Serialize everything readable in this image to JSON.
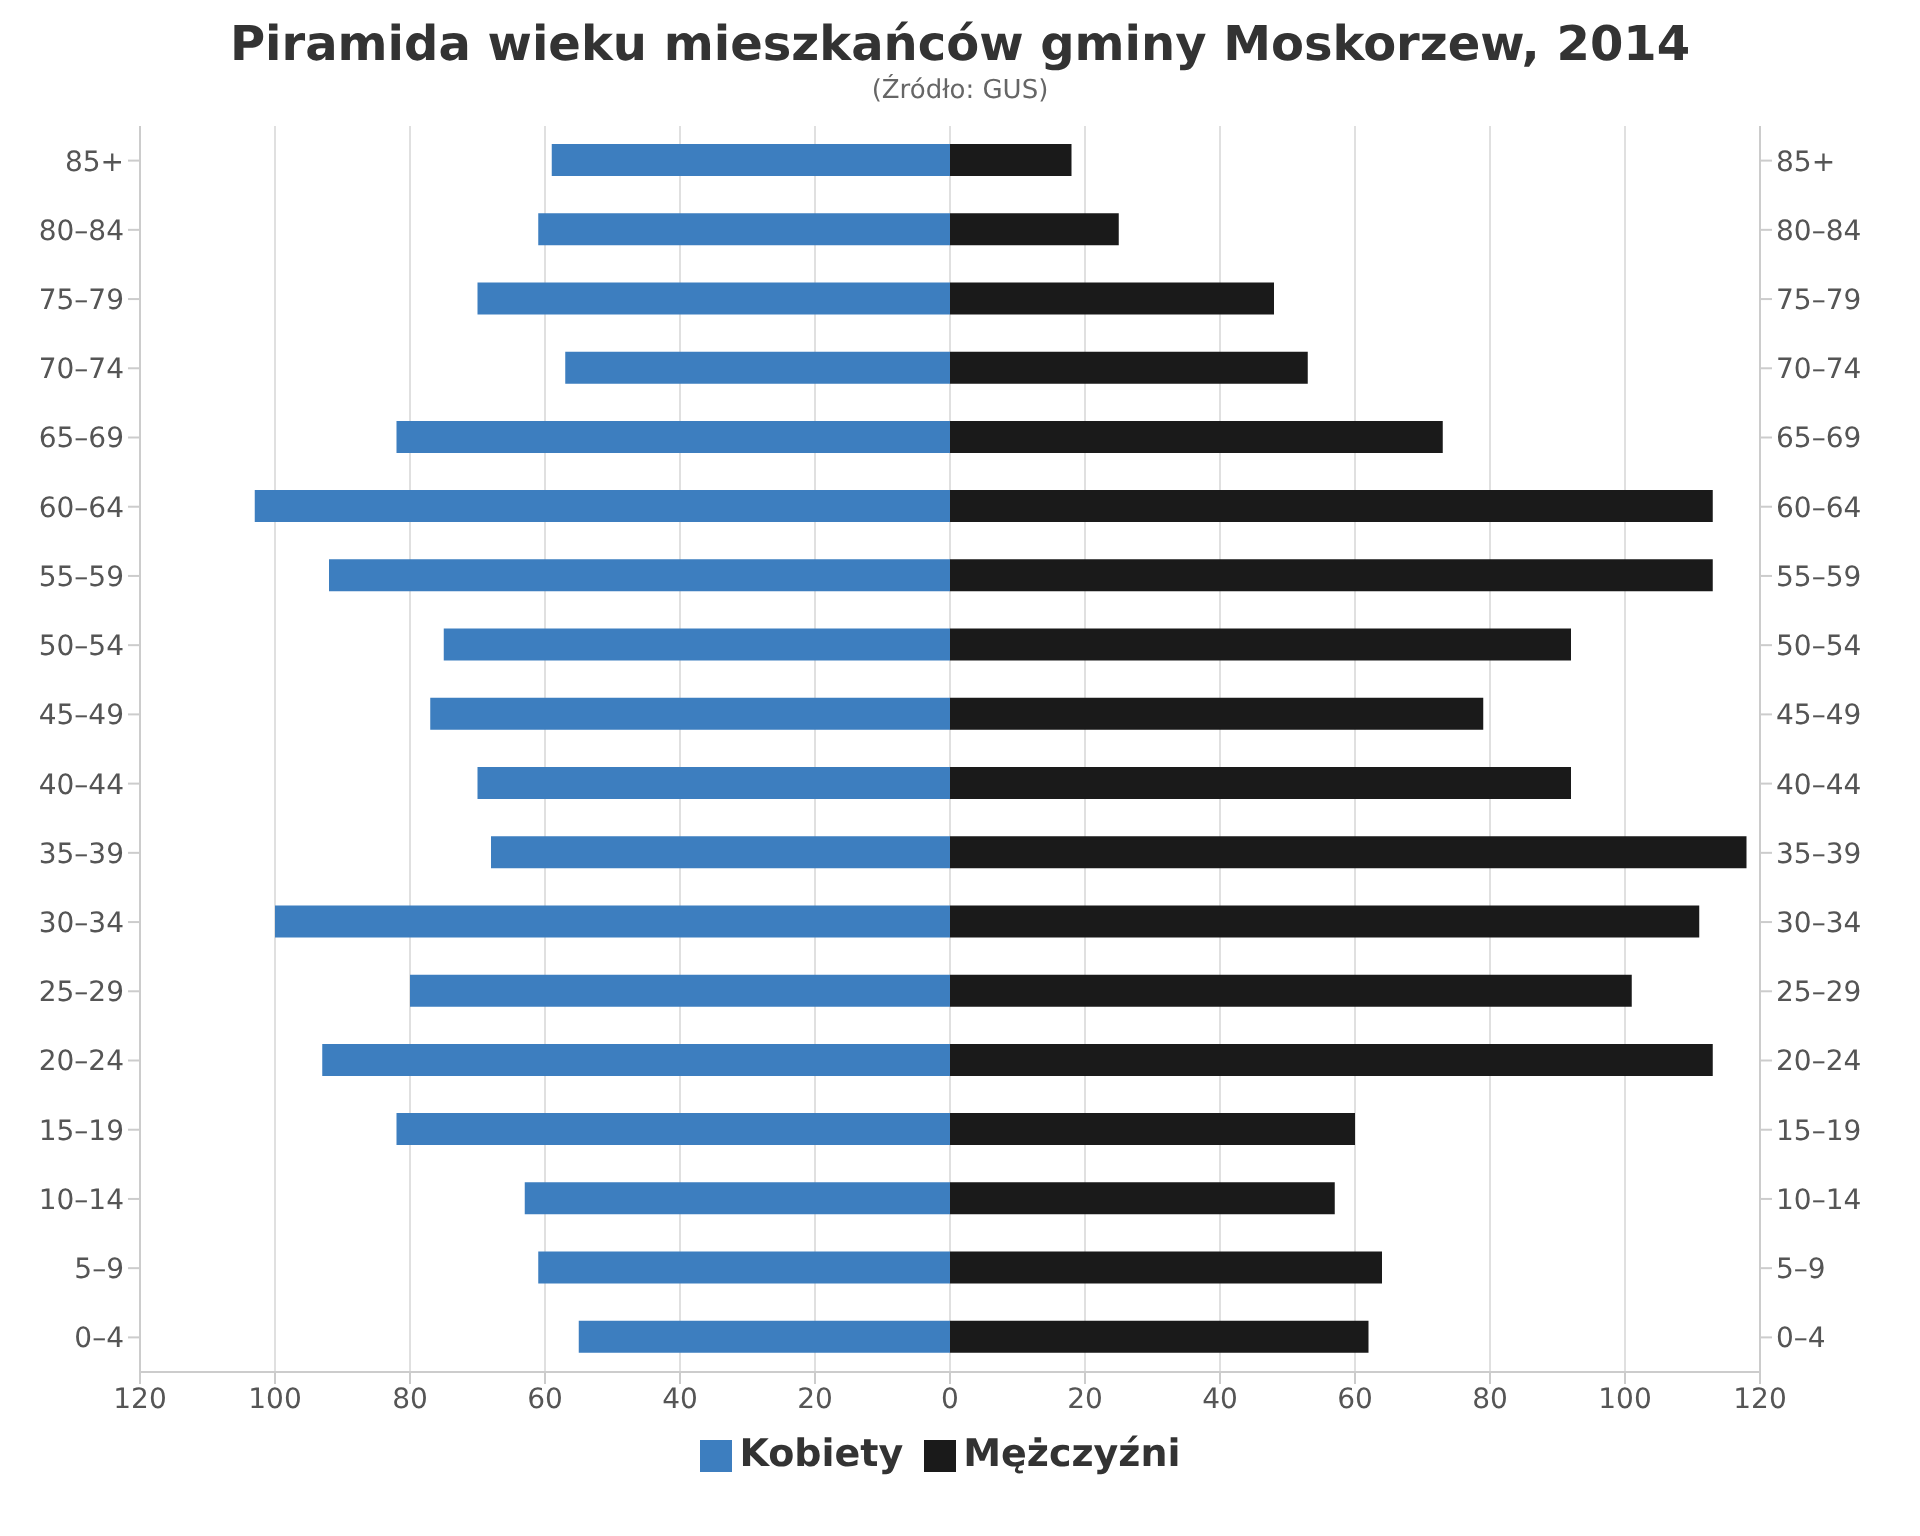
{
  "chart_data": {
    "type": "bar",
    "orientation": "horizontal",
    "stacked": true,
    "title": "Piramida wieku mieszkańców gminy Moskorzew, 2014",
    "subtitle": "(Źródło: GUS)",
    "categories": [
      "85+",
      "80–84",
      "75–79",
      "70–74",
      "65–69",
      "60–64",
      "55–59",
      "50–54",
      "45–49",
      "40–44",
      "35–39",
      "30–34",
      "25–29",
      "20–24",
      "15–19",
      "10–14",
      "5–9",
      "0–4"
    ],
    "series": [
      {
        "name": "Kobiety",
        "color": "#3d7ebf",
        "values": [
          -59,
          -61,
          -70,
          -57,
          -82,
          -103,
          -92,
          -75,
          -77,
          -70,
          -68,
          -100,
          -80,
          -93,
          -82,
          -63,
          -61,
          -55
        ]
      },
      {
        "name": "Mężczyźni",
        "color": "#1a1a1a",
        "values": [
          18,
          25,
          48,
          53,
          73,
          113,
          113,
          92,
          79,
          92,
          118,
          111,
          101,
          113,
          60,
          57,
          64,
          62
        ]
      }
    ],
    "xlim": [
      -120,
      120
    ],
    "xticks": [
      {
        "value": -120,
        "label": "120"
      },
      {
        "value": -100,
        "label": "100"
      },
      {
        "value": -80,
        "label": "80"
      },
      {
        "value": -60,
        "label": "60"
      },
      {
        "value": -40,
        "label": "40"
      },
      {
        "value": -20,
        "label": "20"
      },
      0,
      20,
      40,
      60,
      80,
      100,
      120
    ],
    "grid": "x",
    "legend": "bottom"
  }
}
